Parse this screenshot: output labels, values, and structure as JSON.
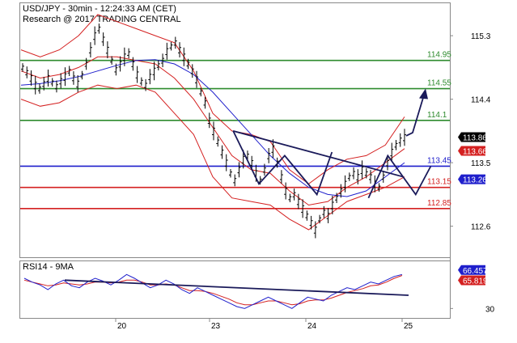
{
  "header": {
    "symbol_line": "USD/JPY - 30min - 12:24:33 AM (CET)",
    "research_line": "Research @ 2017 TRADING CENTRAL"
  },
  "chart_data": {
    "type": "line",
    "title": "USD/JPY - 30min - 12:24:33 AM (CET)",
    "subtitle": "Research @ 2017 TRADING CENTRAL",
    "price_axis": {
      "ticks": [
        "115.3",
        "114.4",
        "113.5",
        "112.6"
      ],
      "tick_values": [
        115.3,
        114.4,
        113.5,
        112.6
      ],
      "range": [
        112.16,
        115.76
      ]
    },
    "date_axis": {
      "ticks": [
        "20",
        "23",
        "24",
        "25"
      ]
    },
    "levels": [
      {
        "label": "114.95",
        "value": 114.95,
        "color": "#2e8b2e"
      },
      {
        "label": "114.55",
        "value": 114.55,
        "color": "#2e8b2e"
      },
      {
        "label": "114.1",
        "value": 114.1,
        "color": "#2e8b2e"
      },
      {
        "label": "113.45",
        "value": 113.45,
        "color": "#1f1fcc"
      },
      {
        "label": "113.15",
        "value": 113.15,
        "color": "#d42020"
      },
      {
        "label": "112.85",
        "value": 112.85,
        "color": "#d42020"
      }
    ],
    "price_tags": [
      {
        "label": "113.863",
        "value": 113.863,
        "color": "#000000"
      },
      {
        "label": "113.667",
        "value": 113.667,
        "color": "#d42020"
      },
      {
        "label": "113.265",
        "value": 113.265,
        "color": "#1f1fcc"
      }
    ],
    "price_series": [
      114.85,
      114.78,
      114.7,
      114.6,
      114.55,
      114.62,
      114.7,
      114.64,
      114.58,
      114.66,
      114.72,
      114.8,
      114.7,
      114.62,
      114.74,
      114.9,
      115.1,
      115.3,
      115.4,
      115.25,
      115.1,
      114.95,
      114.82,
      114.9,
      115.0,
      115.05,
      114.9,
      114.75,
      114.65,
      114.6,
      114.72,
      114.8,
      114.88,
      114.95,
      115.08,
      115.15,
      115.2,
      115.1,
      115.0,
      114.9,
      114.8,
      114.68,
      114.5,
      114.35,
      114.1,
      113.95,
      113.8,
      113.65,
      113.5,
      113.35,
      113.25,
      113.4,
      113.55,
      113.6,
      113.5,
      113.35,
      113.25,
      113.4,
      113.6,
      113.7,
      113.5,
      113.3,
      113.1,
      113.0,
      113.05,
      112.95,
      112.85,
      112.75,
      112.65,
      112.55,
      112.7,
      112.8,
      112.75,
      112.9,
      113.0,
      113.1,
      113.2,
      113.3,
      113.35,
      113.3,
      113.4,
      113.35,
      113.3,
      113.2,
      113.15,
      113.3,
      113.5,
      113.65,
      113.75,
      113.82,
      113.86
    ],
    "ma_blue": [
      114.6,
      114.62,
      114.66,
      114.72,
      114.8,
      114.88,
      114.95,
      114.96,
      114.9,
      114.75,
      114.5,
      114.2,
      113.9,
      113.6,
      113.35,
      113.15,
      113.05,
      113.02,
      113.1,
      113.3,
      113.5
    ],
    "ma_red": [
      114.8,
      114.7,
      114.75,
      114.85,
      115.0,
      115.0,
      114.95,
      114.9,
      114.7,
      114.4,
      114.0,
      113.6,
      113.4,
      113.35,
      113.1,
      112.9,
      112.95,
      113.15,
      113.3,
      113.5,
      113.7
    ],
    "band_upper": [
      115.1,
      115.0,
      115.1,
      115.3,
      115.6,
      115.5,
      115.4,
      115.3,
      115.2,
      114.8,
      114.2,
      113.95,
      113.9,
      113.8,
      113.4,
      113.2,
      113.4,
      113.55,
      113.6,
      113.75,
      114.15
    ],
    "band_lower": [
      114.4,
      114.3,
      114.35,
      114.5,
      114.6,
      114.55,
      114.6,
      114.5,
      114.2,
      113.9,
      113.3,
      113.0,
      112.95,
      112.9,
      112.7,
      112.55,
      112.75,
      112.95,
      113.05,
      113.15,
      113.3
    ],
    "trendlines": [
      {
        "name": "neckline",
        "from": [
          113.95,
          0.505
        ],
        "to": [
          113.3,
          0.995
        ]
      },
      {
        "name": "pattern",
        "points": [
          [
            113.95,
            0.505
          ],
          [
            113.2,
            0.565
          ],
          [
            113.6,
            0.625
          ],
          [
            113.05,
            0.7
          ],
          [
            113.65,
            0.735
          ]
        ]
      },
      {
        "name": "pattern2",
        "points": [
          [
            113.0,
            0.82
          ],
          [
            113.6,
            0.865
          ],
          [
            113.05,
            0.93
          ],
          [
            113.45,
            0.965
          ]
        ]
      }
    ],
    "forecast": {
      "from": 113.88,
      "to": 114.55
    },
    "rsi": {
      "label": "RSI14 - 9MA",
      "ticks": [
        "30"
      ],
      "tags": [
        {
          "label": "66.4579",
          "value": 66.4579,
          "color": "#1f1fcc"
        },
        {
          "label": "65.8193",
          "value": 65.8193,
          "color": "#d42020"
        }
      ],
      "range": [
        20,
        80
      ],
      "rsi_series": [
        62,
        58,
        55,
        50,
        56,
        60,
        54,
        52,
        58,
        62,
        59,
        55,
        60,
        66,
        62,
        57,
        52,
        55,
        60,
        56,
        50,
        46,
        52,
        48,
        44,
        40,
        36,
        32,
        30,
        34,
        38,
        42,
        38,
        34,
        30,
        36,
        42,
        40,
        38,
        44,
        48,
        52,
        50,
        54,
        58,
        56,
        60,
        64,
        66
      ],
      "ma_series": [
        60,
        58,
        56,
        54,
        55,
        57,
        56,
        55,
        56,
        58,
        58,
        57,
        58,
        60,
        60,
        58,
        55,
        55,
        56,
        55,
        52,
        49,
        49,
        48,
        46,
        43,
        40,
        36,
        34,
        34,
        36,
        38,
        38,
        36,
        34,
        35,
        38,
        39,
        39,
        41,
        44,
        47,
        49,
        51,
        54,
        55,
        58,
        62,
        65
      ],
      "trendline": {
        "from": 60,
        "to": 44
      }
    }
  }
}
